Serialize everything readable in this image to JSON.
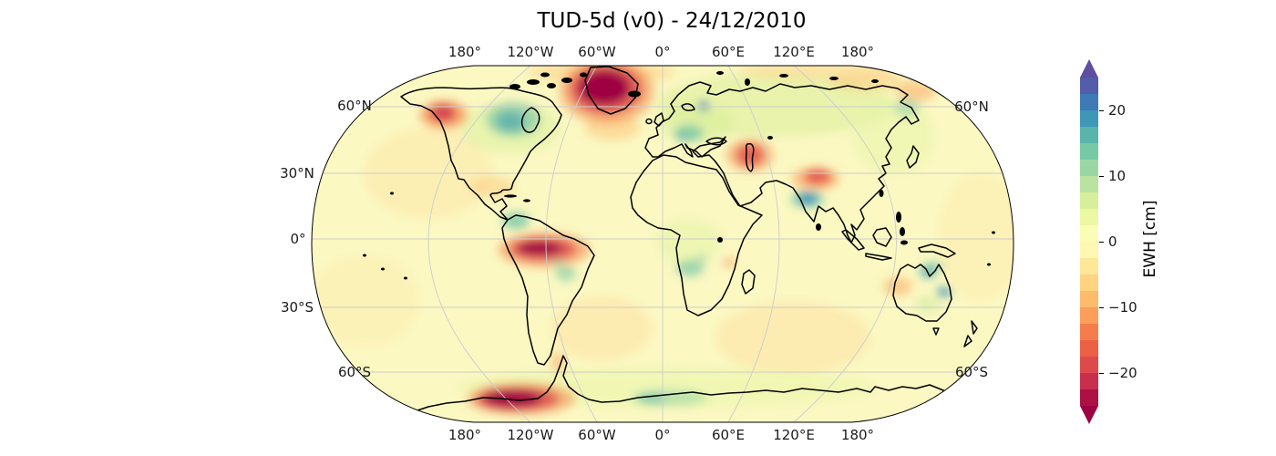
{
  "title": "TUD-5d (v0) - 24/12/2010",
  "axes": {
    "lon_labels": [
      "180°",
      "120°W",
      "60°W",
      "0°",
      "60°E",
      "120°E",
      "180°"
    ],
    "lat_labels_left": [
      "60°N",
      "30°N",
      "0°",
      "30°S",
      "60°S"
    ],
    "lat_labels_right": [
      "60°N",
      "60°S"
    ]
  },
  "colorbar": {
    "label": "EWH [cm]",
    "ticks": [
      "20",
      "10",
      "0",
      "−10",
      "−20"
    ],
    "tick_values": [
      20,
      10,
      0,
      -10,
      -20
    ],
    "vmin": -25,
    "vmax": 25,
    "band_step": 2.5,
    "colormap": "Spectral",
    "under_color": "#9e0142",
    "over_color": "#5e4fa2",
    "band_colors_low_to_high": [
      "#ac1045",
      "#c72f4c",
      "#dd4a4c",
      "#ec6146",
      "#f67d4b",
      "#fb9e5a",
      "#fdbb6c",
      "#fed481",
      "#fee898",
      "#fff7b2",
      "#f9fdb5",
      "#ecf8a2",
      "#d7ef9b",
      "#bae3a1",
      "#9ad6a4",
      "#77c9a5",
      "#59b4ab",
      "#3f97b7",
      "#3d7ab6",
      "#535da9"
    ]
  },
  "chart_data": {
    "type": "heatmap",
    "title": "TUD-5d (v0) - 24/12/2010",
    "projection": "Robinson",
    "variable": "EWH [cm]",
    "colormap": "Spectral",
    "value_range": [
      -25,
      25
    ],
    "grid": {
      "lon_interval_deg": 60,
      "lat_interval_deg": 30
    },
    "legend_position": "right",
    "notable_anomalies": [
      {
        "region": "Greenland",
        "value_cm": -25
      },
      {
        "region": "Gulf of Alaska / SE Alaska coast",
        "value_cm": -15
      },
      {
        "region": "Amazon basin",
        "value_cm": -25
      },
      {
        "region": "West Antarctica (Amundsen Sea sector)",
        "value_cm": -25
      },
      {
        "region": "Antarctic Peninsula",
        "value_cm": -8
      },
      {
        "region": "Caspian Sea region",
        "value_cm": -13
      },
      {
        "region": "Himalaya / Karakoram",
        "value_cm": -13
      },
      {
        "region": "Northern India (Ganges plain)",
        "value_cm": 15
      },
      {
        "region": "Hudson Bay / central Canada",
        "value_cm": 10
      },
      {
        "region": "Scandinavia (local spot)",
        "value_cm": 18
      },
      {
        "region": "Eastern Europe",
        "value_cm": 8
      },
      {
        "region": "Northern South America (Orinoco)",
        "value_cm": 8
      },
      {
        "region": "Central Brazil",
        "value_cm": 6
      },
      {
        "region": "Zambia / southern Africa",
        "value_cm": 7
      },
      {
        "region": "Gulf of Carpentaria (N Australia)",
        "value_cm": 12
      },
      {
        "region": "Northeastern Australia",
        "value_cm": 12
      },
      {
        "region": "Western Australia",
        "value_cm": -6
      },
      {
        "region": "East Antarctica coast",
        "value_cm": 6
      },
      {
        "region": "Siberia (broad)",
        "value_cm": 4
      },
      {
        "region": "Subtropical oceans (broad)",
        "value_cm": -3
      }
    ]
  }
}
